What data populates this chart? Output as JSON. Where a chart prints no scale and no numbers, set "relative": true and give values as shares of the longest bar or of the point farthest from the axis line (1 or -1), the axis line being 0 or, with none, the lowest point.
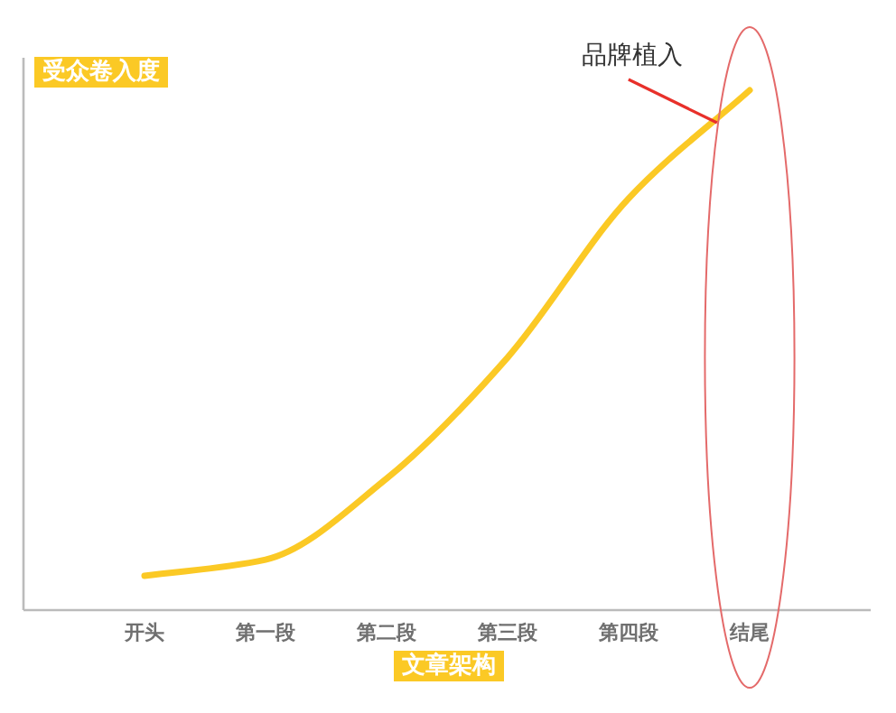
{
  "chart_data": {
    "type": "line",
    "relative": true,
    "xlabel": "文章架构",
    "ylabel": "受众卷入度",
    "categories": [
      "开头",
      "第一段",
      "第二段",
      "第三段",
      "第四段",
      "结尾"
    ],
    "series": [
      {
        "color": "#fbc925",
        "values": [
          0.066,
          0.097,
          0.253,
          0.486,
          0.792,
          1
        ]
      }
    ],
    "annotations": [
      "品牌植入"
    ]
  }
}
